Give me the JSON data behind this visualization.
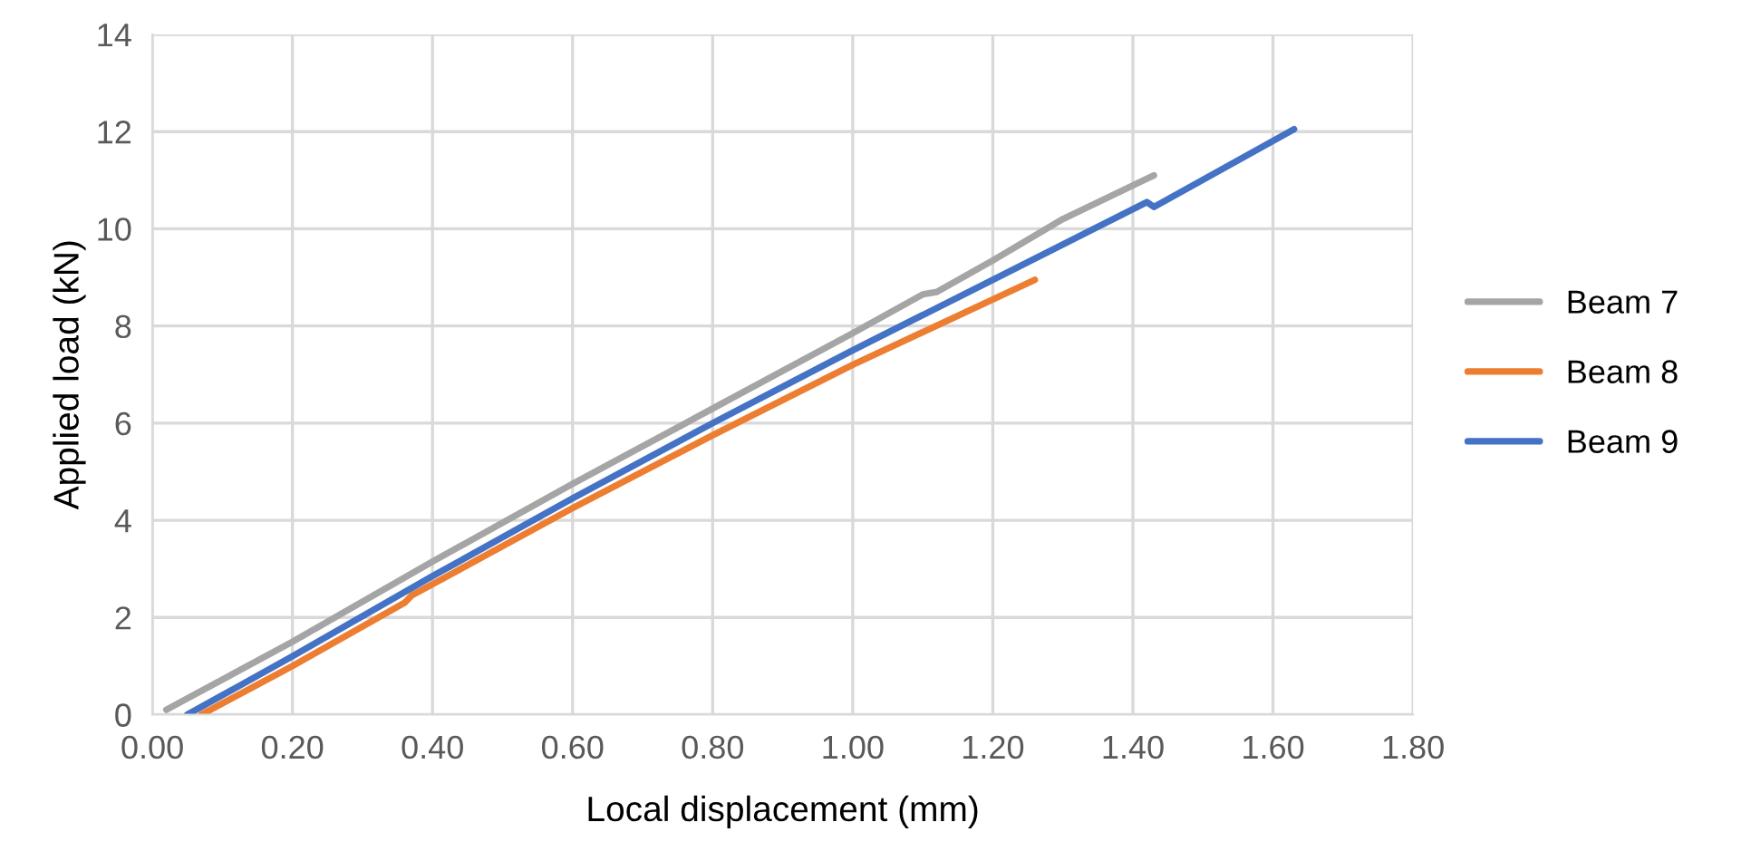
{
  "chart_data": {
    "type": "line",
    "xlabel": "Local displacement (mm)",
    "ylabel": "Applied load (kN)",
    "xlim": [
      0,
      1.8
    ],
    "xticks": [
      {
        "value": 0,
        "label": "0.00"
      },
      {
        "value": 0.2,
        "label": "0.20"
      },
      {
        "value": 0.4,
        "label": "0.40"
      },
      {
        "value": 0.6,
        "label": "0.60"
      },
      {
        "value": 0.8,
        "label": "0.80"
      },
      {
        "value": 1.0,
        "label": "1.00"
      },
      {
        "value": 1.2,
        "label": "1.20"
      },
      {
        "value": 1.4,
        "label": "1.40"
      },
      {
        "value": 1.6,
        "label": "1.60"
      },
      {
        "value": 1.8,
        "label": "1.80"
      }
    ],
    "ylim": [
      0,
      14
    ],
    "yticks": [
      0,
      2,
      4,
      6,
      8,
      10,
      12,
      14
    ],
    "grid": true,
    "legend": "right",
    "marker": "none",
    "line_style": "solid",
    "series": [
      {
        "name": "Beam 7",
        "color": "#a5a5a5",
        "x": [
          0.02,
          0.2,
          0.4,
          0.6,
          0.8,
          1.0,
          1.1,
          1.12,
          1.2,
          1.3,
          1.43
        ],
        "values": [
          0.1,
          1.5,
          3.15,
          4.75,
          6.3,
          7.85,
          8.65,
          8.7,
          9.35,
          10.2,
          11.1
        ]
      },
      {
        "name": "Beam 8",
        "color": "#ed7d31",
        "x": [
          0.07,
          0.2,
          0.36,
          0.37,
          0.6,
          0.8,
          1.0,
          1.26
        ],
        "values": [
          0,
          1.0,
          2.3,
          2.45,
          4.25,
          5.75,
          7.2,
          8.95
        ]
      },
      {
        "name": "Beam 9",
        "color": "#4472c4",
        "x": [
          0.05,
          0.2,
          0.4,
          0.6,
          0.8,
          1.0,
          1.2,
          1.42,
          1.43,
          1.63
        ],
        "values": [
          0,
          1.2,
          2.85,
          4.45,
          6.0,
          7.5,
          8.95,
          10.55,
          10.45,
          12.05
        ]
      }
    ]
  }
}
